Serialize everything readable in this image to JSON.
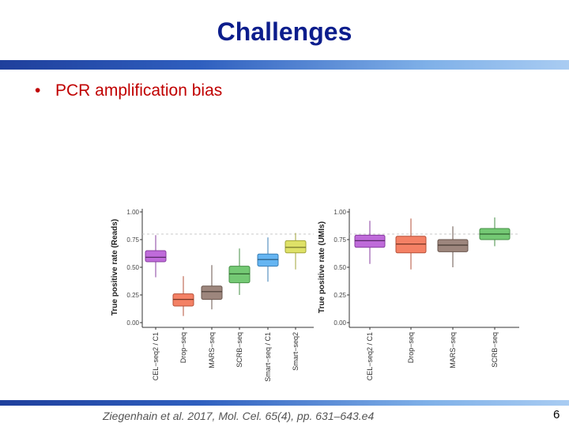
{
  "slide": {
    "title": "Challenges",
    "bullet": "PCR amplification bias",
    "citation": "Ziegenhain et al. 2017, Mol. Cel. 65(4), pp. 631–643.e4",
    "page_number": "6"
  },
  "colors": {
    "title": "#0c1d8c",
    "bullet": "#c00000",
    "bar": "#2f5fbf"
  },
  "chart_data": [
    {
      "type": "box",
      "ylabel": "True positive rate (Reads)",
      "ylim": [
        0,
        1
      ],
      "yticks": [
        "0.00",
        "0.25",
        "0.50",
        "0.75",
        "1.00"
      ],
      "reference_line": 0.8,
      "categories": [
        "CEL−seq2 / C1",
        "Drop−seq",
        "MARS−seq",
        "SCRB−seq",
        "Smart−seq / C1",
        "Smart−seq2"
      ],
      "boxes": [
        {
          "name": "CEL−seq2 / C1",
          "color": "#b451d4",
          "min": 0.41,
          "q1": 0.55,
          "median": 0.59,
          "q3": 0.65,
          "max": 0.79
        },
        {
          "name": "Drop−seq",
          "color": "#f26b4a",
          "min": 0.06,
          "q1": 0.15,
          "median": 0.21,
          "q3": 0.26,
          "max": 0.42
        },
        {
          "name": "MARS−seq",
          "color": "#8c7166",
          "min": 0.12,
          "q1": 0.21,
          "median": 0.28,
          "q3": 0.33,
          "max": 0.52
        },
        {
          "name": "SCRB−seq",
          "color": "#5cbf5c",
          "min": 0.25,
          "q1": 0.36,
          "median": 0.44,
          "q3": 0.51,
          "max": 0.67
        },
        {
          "name": "Smart−seq / C1",
          "color": "#4aa8f0",
          "min": 0.37,
          "q1": 0.51,
          "median": 0.57,
          "q3": 0.62,
          "max": 0.77
        },
        {
          "name": "Smart−seq2",
          "color": "#d8dc4c",
          "min": 0.48,
          "q1": 0.63,
          "median": 0.68,
          "q3": 0.74,
          "max": 0.81
        }
      ]
    },
    {
      "type": "box",
      "ylabel": "True positive rate (UMIs)",
      "ylim": [
        0,
        1
      ],
      "yticks": [
        "0.00",
        "0.25",
        "0.50",
        "0.75",
        "1.00"
      ],
      "reference_line": 0.8,
      "categories": [
        "CEL−seq2 / C1",
        "Drop−seq",
        "MARS−seq",
        "SCRB−seq"
      ],
      "boxes": [
        {
          "name": "CEL−seq2 / C1",
          "color": "#b451d4",
          "min": 0.53,
          "q1": 0.68,
          "median": 0.74,
          "q3": 0.79,
          "max": 0.92
        },
        {
          "name": "Drop−seq",
          "color": "#f26b4a",
          "min": 0.48,
          "q1": 0.63,
          "median": 0.71,
          "q3": 0.78,
          "max": 0.94
        },
        {
          "name": "MARS−seq",
          "color": "#8c7166",
          "min": 0.5,
          "q1": 0.64,
          "median": 0.7,
          "q3": 0.75,
          "max": 0.87
        },
        {
          "name": "SCRB−seq",
          "color": "#5cbf5c",
          "min": 0.69,
          "q1": 0.75,
          "median": 0.8,
          "q3": 0.85,
          "max": 0.95
        }
      ]
    }
  ]
}
